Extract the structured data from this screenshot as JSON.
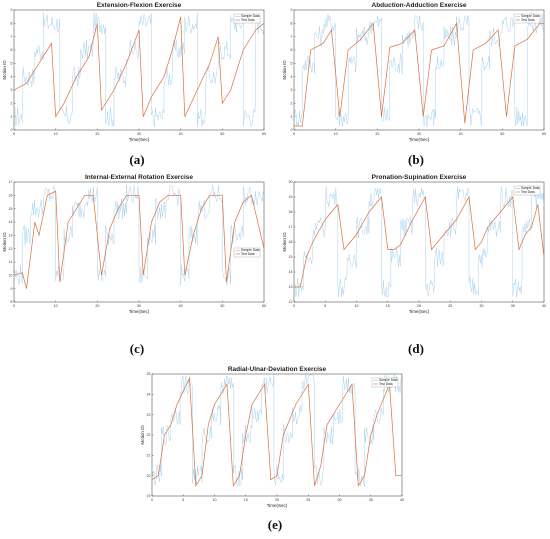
{
  "colors": {
    "sample": "#8cc4e8",
    "real": "#dd6e3c",
    "axis": "#333333"
  },
  "chart_data": [
    {
      "type": "line",
      "panel_letter": "(a)",
      "title": "Extension-Flexion Exercise",
      "xlabel": "Time(Sec)",
      "ylabel": "Motion ID",
      "xlim": [
        0,
        60
      ],
      "ylim": [
        0,
        9
      ],
      "x_ticks": [
        0,
        10,
        20,
        30,
        40,
        50,
        60
      ],
      "y_ticks": [
        0,
        1,
        2,
        3,
        4,
        5,
        6,
        7,
        8,
        9
      ],
      "legend": {
        "entries": [
          "Sample Data",
          "Test Data"
        ],
        "placement": "top-right"
      },
      "series": [
        {
          "name": "Sample Data",
          "x": [
            0,
            2,
            2,
            5,
            5,
            7,
            7,
            11,
            11,
            14,
            14,
            16,
            16,
            19,
            19,
            22,
            22,
            24,
            24,
            27,
            27,
            30,
            30,
            33,
            33,
            36,
            36,
            38,
            38,
            41,
            41,
            44,
            44,
            46,
            46,
            49,
            49,
            52,
            52,
            55,
            55,
            58,
            58,
            60
          ],
          "y": [
            1,
            1,
            4,
            4,
            6,
            6,
            8,
            8,
            1,
            1,
            4,
            4,
            6,
            6,
            8,
            8,
            1,
            1,
            4,
            4,
            6,
            6,
            8,
            8,
            1,
            1,
            4,
            4,
            6,
            6,
            8,
            8,
            1,
            1,
            4,
            4,
            6,
            6,
            8,
            8,
            1,
            1,
            8,
            8
          ]
        },
        {
          "name": "Test Data",
          "x": [
            0,
            3,
            6,
            9,
            10,
            12,
            15,
            18,
            20,
            21,
            24,
            27,
            30,
            31,
            33,
            36,
            38,
            40,
            41,
            44,
            47,
            49,
            50,
            52,
            55,
            58,
            60
          ],
          "y": [
            3,
            3.5,
            5,
            6.5,
            1,
            2,
            4,
            5.5,
            8,
            1.5,
            3,
            5,
            7.5,
            1,
            2.5,
            4,
            6,
            8.5,
            1,
            3,
            5,
            7,
            2,
            3,
            6,
            7.5,
            8
          ]
        }
      ]
    },
    {
      "type": "line",
      "panel_letter": "(b)",
      "title": "Abduction-Adduction Exercise",
      "xlabel": "Time(Sec)",
      "ylabel": "Motion ID",
      "xlim": [
        0,
        60
      ],
      "ylim": [
        0,
        9
      ],
      "x_ticks": [
        0,
        10,
        20,
        30,
        40,
        50,
        60
      ],
      "y_ticks": [
        0,
        1,
        2,
        3,
        4,
        5,
        6,
        7,
        8,
        9
      ],
      "legend": {
        "entries": [
          "Sample Data",
          "Test Data"
        ],
        "placement": "top-right"
      },
      "series": [
        {
          "name": "Sample Data",
          "x": [
            0,
            2,
            2,
            5,
            5,
            7,
            7,
            10,
            10,
            13,
            13,
            15,
            15,
            18,
            18,
            21,
            21,
            23,
            23,
            26,
            26,
            29,
            29,
            31,
            31,
            34,
            34,
            36,
            36,
            39,
            39,
            42,
            42,
            45,
            45,
            47,
            47,
            50,
            50,
            53,
            53,
            56,
            56,
            60
          ],
          "y": [
            1,
            1,
            5,
            5,
            7,
            7,
            8,
            8,
            1,
            1,
            5,
            5,
            7,
            7,
            8,
            8,
            1,
            1,
            5,
            5,
            7,
            7,
            8,
            8,
            1,
            1,
            5,
            5,
            7,
            7,
            8,
            8,
            1,
            1,
            5,
            5,
            7,
            7,
            8,
            8,
            1,
            1,
            8,
            8
          ]
        },
        {
          "name": "Test Data",
          "x": [
            0,
            2,
            4,
            7,
            9,
            11,
            13,
            16,
            19,
            21,
            23,
            26,
            29,
            31,
            33,
            36,
            39,
            41,
            43,
            46,
            49,
            51,
            53,
            56,
            59,
            60
          ],
          "y": [
            0.3,
            0.3,
            6,
            6.5,
            7.5,
            1,
            6,
            6.8,
            8,
            1,
            6.2,
            6.5,
            7.5,
            1,
            6,
            6.3,
            8,
            0.5,
            6,
            6.5,
            7.5,
            1,
            6.3,
            6.8,
            8,
            8
          ]
        }
      ]
    },
    {
      "type": "line",
      "panel_letter": "(c)",
      "title": "Internal-External Rotation Exercise",
      "xlabel": "Time(Sec)",
      "ylabel": "Motion ID",
      "xlim": [
        0,
        60
      ],
      "ylim": [
        8,
        17
      ],
      "x_ticks": [
        0,
        10,
        20,
        30,
        40,
        50,
        60
      ],
      "y_ticks": [
        8,
        9,
        10,
        11,
        12,
        13,
        14,
        15,
        16,
        17
      ],
      "legend": {
        "entries": [
          "Sample Data",
          "Test Data"
        ],
        "placement": "center-right"
      },
      "series": [
        {
          "name": "Sample Data",
          "x": [
            0,
            2,
            2,
            4,
            4,
            7,
            7,
            10,
            10,
            12,
            12,
            14,
            14,
            17,
            17,
            20,
            20,
            22,
            22,
            24,
            24,
            27,
            27,
            30,
            30,
            32,
            32,
            34,
            34,
            37,
            37,
            40,
            40,
            42,
            42,
            44,
            44,
            47,
            47,
            50,
            50,
            52,
            52,
            55,
            55,
            60
          ],
          "y": [
            10,
            10,
            13,
            13,
            15,
            15,
            16,
            16,
            10,
            10,
            13,
            13,
            15,
            15,
            16,
            16,
            10,
            10,
            13,
            13,
            15,
            15,
            16,
            16,
            10,
            10,
            13,
            13,
            15,
            15,
            16,
            16,
            10,
            10,
            13,
            13,
            15,
            15,
            16,
            16,
            10,
            10,
            13,
            13,
            16,
            16
          ]
        },
        {
          "name": "Test Data",
          "x": [
            0,
            2,
            3,
            5,
            6,
            8,
            10,
            11,
            13,
            15,
            17,
            19,
            21,
            23,
            25,
            27,
            30,
            31,
            33,
            35,
            37,
            40,
            41,
            43,
            45,
            47,
            50,
            51,
            53,
            55,
            57,
            60
          ],
          "y": [
            10,
            10.2,
            9,
            14,
            13,
            16,
            16.3,
            9.5,
            14,
            15,
            16,
            16,
            10,
            13.5,
            15,
            16,
            16,
            10,
            14,
            15.5,
            16,
            16,
            10,
            13,
            15,
            16,
            16,
            9.5,
            14,
            15.5,
            16,
            12
          ]
        }
      ]
    },
    {
      "type": "line",
      "panel_letter": "(d)",
      "title": "Pronation-Supination Exercise",
      "xlabel": "Time(Sec)",
      "ylabel": "Motion ID",
      "xlim": [
        0,
        40
      ],
      "ylim": [
        12,
        20
      ],
      "x_ticks": [
        0,
        5,
        10,
        15,
        20,
        25,
        30,
        35,
        40
      ],
      "y_ticks": [
        12,
        13,
        14,
        15,
        16,
        17,
        18,
        19,
        20
      ],
      "legend": {
        "entries": [
          "Sample Data",
          "Test Data"
        ],
        "placement": "top-right"
      },
      "series": [
        {
          "name": "Sample Data",
          "x": [
            0,
            1.5,
            1.5,
            3,
            3,
            5,
            5,
            7,
            7,
            8.5,
            8.5,
            10,
            10,
            12,
            12,
            14,
            14,
            15.5,
            15.5,
            17,
            17,
            19,
            19,
            21,
            21,
            22.5,
            22.5,
            24,
            24,
            26,
            26,
            28,
            28,
            29.5,
            29.5,
            31,
            31,
            33,
            33,
            35,
            35,
            36.5,
            36.5,
            38,
            38,
            40
          ],
          "y": [
            13,
            13,
            15,
            15,
            17,
            17,
            19,
            19,
            13,
            13,
            15,
            15,
            17,
            17,
            19,
            19,
            13,
            13,
            15,
            15,
            17,
            17,
            19,
            19,
            13,
            13,
            15,
            15,
            17,
            17,
            19,
            19,
            13,
            13,
            15,
            15,
            17,
            17,
            19,
            19,
            13,
            13,
            17,
            17,
            19,
            19
          ]
        },
        {
          "name": "Test Data",
          "x": [
            0,
            1,
            2,
            3,
            5,
            7,
            8,
            9,
            10,
            12,
            14,
            15,
            16,
            17,
            19,
            21,
            22,
            23,
            24,
            26,
            28,
            29,
            30,
            31,
            33,
            35,
            36,
            37,
            38,
            39,
            40
          ],
          "y": [
            13,
            13,
            15,
            16,
            17.5,
            18.5,
            15.5,
            16,
            16.5,
            18,
            19,
            15.5,
            15.5,
            15.8,
            17.5,
            19,
            15.5,
            16,
            16.5,
            17.5,
            19,
            15.5,
            16,
            17,
            18,
            19,
            15.5,
            16.5,
            17,
            18.5,
            15
          ]
        }
      ]
    },
    {
      "type": "line",
      "panel_letter": "(e)",
      "title": "Radial-Ulnar-Deviation Exercise",
      "xlabel": "Time(Sec)",
      "ylabel": "Motion ID",
      "xlim": [
        0,
        40
      ],
      "ylim": [
        19,
        25
      ],
      "x_ticks": [
        0,
        5,
        10,
        15,
        20,
        25,
        30,
        35,
        40
      ],
      "y_ticks": [
        19,
        20,
        21,
        22,
        23,
        24,
        25
      ],
      "legend": {
        "entries": [
          "Sample Data",
          "Test Data"
        ],
        "placement": "top-right"
      },
      "series": [
        {
          "name": "Sample Data",
          "x": [
            0,
            1.5,
            1.5,
            3,
            3,
            4.5,
            4.5,
            6.5,
            6.5,
            8,
            8,
            9.5,
            9.5,
            11,
            11,
            13,
            13,
            14.5,
            14.5,
            16,
            16,
            17.5,
            17.5,
            19.5,
            19.5,
            21,
            21,
            22.5,
            22.5,
            24,
            24,
            26,
            26,
            27.5,
            27.5,
            29,
            29,
            30.5,
            30.5,
            32.5,
            32.5,
            34,
            34,
            35.5,
            35.5,
            37,
            37,
            40
          ],
          "y": [
            20,
            20,
            22,
            22,
            23,
            23,
            24.5,
            24.5,
            20,
            20,
            22,
            22,
            23,
            23,
            24.5,
            24.5,
            20,
            20,
            22,
            22,
            23,
            23,
            24.5,
            24.5,
            20,
            20,
            22,
            22,
            23,
            23,
            24.5,
            24.5,
            20,
            20,
            22,
            22,
            23,
            23,
            24.5,
            24.5,
            20,
            20,
            22,
            22,
            23,
            23,
            24.5,
            24.5
          ]
        },
        {
          "name": "Test Data",
          "x": [
            0,
            1,
            2,
            3,
            4,
            6,
            7,
            8,
            9,
            10,
            12,
            13,
            14,
            15,
            16,
            18,
            19,
            20,
            21,
            23,
            25,
            26,
            27,
            28,
            30,
            32,
            33,
            34,
            35,
            36,
            38,
            39,
            40
          ],
          "y": [
            19.8,
            20,
            22,
            22.5,
            23.5,
            24.8,
            19.5,
            20,
            22.5,
            23.5,
            24.5,
            19.5,
            20,
            22,
            23.5,
            24.5,
            19.8,
            20,
            22,
            23.5,
            24.5,
            19.5,
            20.5,
            22.5,
            23.5,
            24.5,
            19.5,
            20,
            22,
            23,
            24.5,
            20,
            20
          ]
        }
      ]
    }
  ]
}
